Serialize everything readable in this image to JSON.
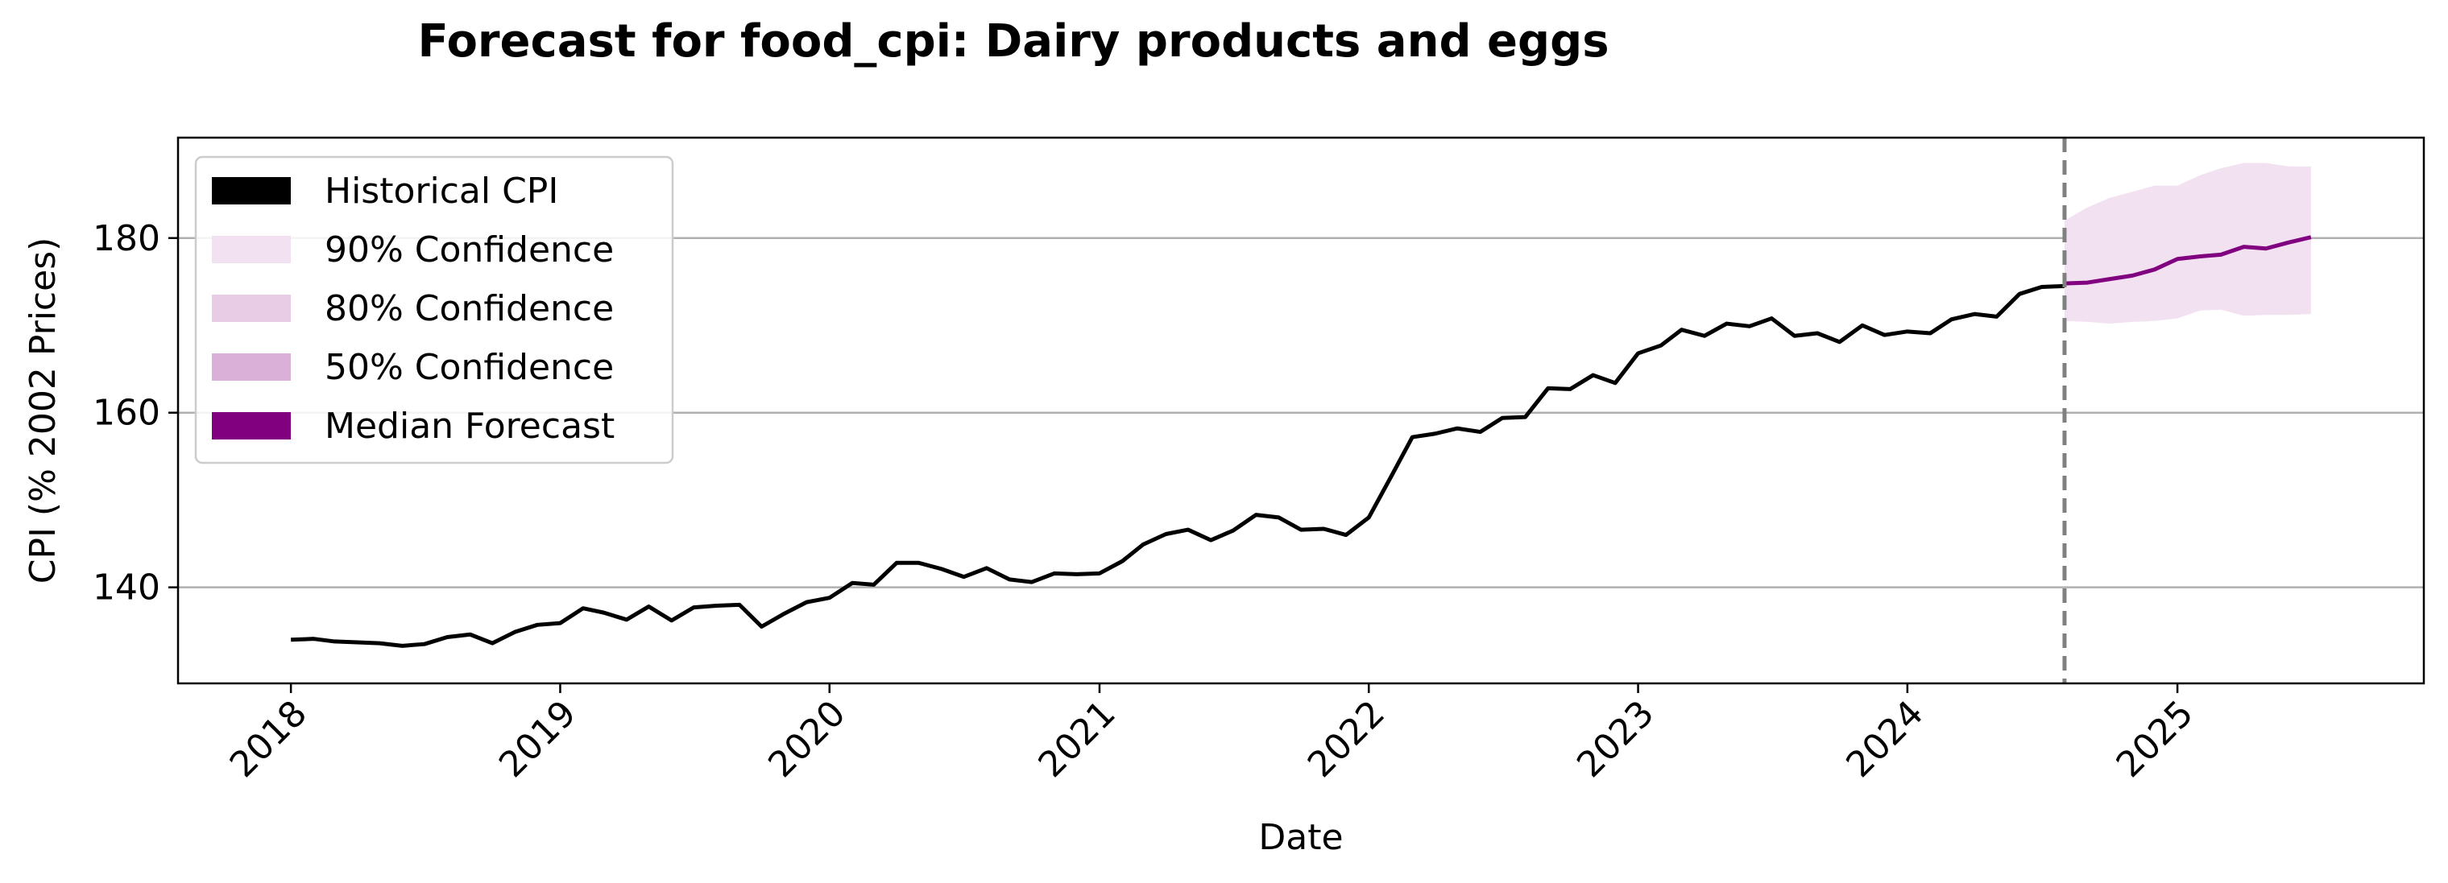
{
  "chart_data": {
    "type": "line",
    "title": "Forecast for food_cpi: Dairy products and eggs",
    "xlabel": "Date",
    "ylabel": "CPI (% 2002 Prices)",
    "x_axis_type": "date",
    "xlim": [
      "2017-08-01",
      "2025-12-01"
    ],
    "ylim": [
      129,
      191.5
    ],
    "x_ticks": [
      "2018",
      "2019",
      "2020",
      "2021",
      "2022",
      "2023",
      "2024",
      "2025"
    ],
    "y_ticks": [
      140,
      160,
      180
    ],
    "grid": "y",
    "legend_position": "upper-left",
    "forecast_start": "2024-08-01",
    "legend": [
      {
        "label": "Historical CPI",
        "color": "#000000"
      },
      {
        "label": "90% Confidence",
        "color": "#f2e1f0"
      },
      {
        "label": "80% Confidence",
        "color": "#e8cbe4"
      },
      {
        "label": "50% Confidence",
        "color": "#dbb0d8"
      },
      {
        "label": "Median Forecast",
        "color": "#800080"
      }
    ],
    "historical": {
      "name": "Historical CPI",
      "color": "#000000",
      "x": [
        "2018-01",
        "2018-02",
        "2018-03",
        "2018-04",
        "2018-05",
        "2018-06",
        "2018-07",
        "2018-08",
        "2018-09",
        "2018-10",
        "2018-11",
        "2018-12",
        "2019-01",
        "2019-02",
        "2019-03",
        "2019-04",
        "2019-05",
        "2019-06",
        "2019-07",
        "2019-08",
        "2019-09",
        "2019-10",
        "2019-11",
        "2019-12",
        "2020-01",
        "2020-02",
        "2020-03",
        "2020-04",
        "2020-05",
        "2020-06",
        "2020-07",
        "2020-08",
        "2020-09",
        "2020-10",
        "2020-11",
        "2020-12",
        "2021-01",
        "2021-02",
        "2021-03",
        "2021-04",
        "2021-05",
        "2021-06",
        "2021-07",
        "2021-08",
        "2021-09",
        "2021-10",
        "2021-11",
        "2021-12",
        "2022-01",
        "2022-02",
        "2022-03",
        "2022-04",
        "2022-05",
        "2022-06",
        "2022-07",
        "2022-08",
        "2022-09",
        "2022-10",
        "2022-11",
        "2022-12",
        "2023-01",
        "2023-02",
        "2023-03",
        "2023-04",
        "2023-05",
        "2023-06",
        "2023-07",
        "2023-08",
        "2023-09",
        "2023-10",
        "2023-11",
        "2023-12",
        "2024-01",
        "2024-02",
        "2024-03",
        "2024-04",
        "2024-05",
        "2024-06",
        "2024-07",
        "2024-08"
      ],
      "values": [
        134.0,
        134.1,
        133.8,
        133.7,
        133.6,
        133.3,
        133.5,
        134.3,
        134.6,
        133.6,
        134.9,
        135.7,
        135.9,
        137.6,
        137.1,
        136.3,
        137.8,
        136.2,
        137.7,
        137.9,
        138.0,
        135.5,
        137.0,
        138.3,
        138.8,
        140.5,
        140.3,
        142.8,
        142.8,
        142.1,
        141.2,
        142.2,
        140.9,
        140.6,
        141.6,
        141.5,
        141.6,
        143.0,
        144.9,
        146.1,
        146.6,
        145.4,
        146.5,
        148.3,
        148.0,
        146.6,
        146.7,
        146.0,
        148.0,
        152.8,
        157.2,
        157.6,
        158.2,
        157.8,
        159.4,
        159.5,
        162.8,
        162.7,
        164.3,
        163.4,
        166.8,
        167.7,
        169.5,
        168.8,
        170.2,
        169.9,
        170.8,
        168.8,
        169.1,
        168.1,
        170.0,
        168.9,
        169.3,
        169.1,
        170.7,
        171.3,
        171.0,
        173.6,
        174.4,
        174.5
      ]
    },
    "forecast": {
      "name": "Median Forecast",
      "color": "#800080",
      "x": [
        "2024-08",
        "2024-09",
        "2024-10",
        "2024-11",
        "2024-12",
        "2025-01",
        "2025-02",
        "2025-03",
        "2025-04",
        "2025-05",
        "2025-06",
        "2025-07"
      ],
      "median": [
        174.8,
        174.9,
        175.3,
        175.7,
        176.4,
        177.6,
        177.9,
        178.1,
        179.0,
        178.8,
        179.5,
        180.1
      ],
      "p90_upper": [
        182.0,
        183.5,
        184.6,
        185.3,
        186.0,
        186.0,
        187.2,
        188.0,
        188.6,
        188.6,
        188.2,
        188.2
      ],
      "p90_lower": [
        170.5,
        170.4,
        170.2,
        170.4,
        170.5,
        170.8,
        171.7,
        171.8,
        171.1,
        171.2,
        171.2,
        171.3
      ]
    }
  }
}
